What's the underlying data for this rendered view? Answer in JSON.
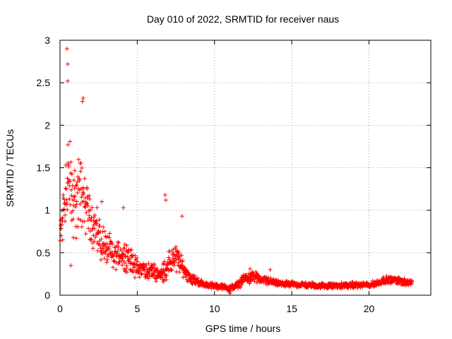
{
  "chart_data": {
    "type": "scatter",
    "title": "Day 010 of 2022, SRMTID for receiver naus",
    "xlabel": "GPS time / hours",
    "ylabel": "SRMTID / TECUs",
    "xlim": [
      0,
      24
    ],
    "ylim": [
      0,
      3
    ],
    "x_ticks": [
      0,
      5,
      10,
      15,
      20
    ],
    "y_ticks": [
      0,
      0.5,
      1,
      1.5,
      2,
      2.5,
      3
    ],
    "x_tick_labels": [
      "0",
      "5",
      "10",
      "15",
      "20"
    ],
    "y_tick_labels": [
      "0",
      "0.5",
      "1",
      "1.5",
      "2",
      "2.5",
      "3"
    ],
    "grid": true,
    "marker": "+",
    "series": [
      {
        "name": "SRMTID",
        "color": "#ff0000",
        "envelope_x": [
          0,
          0.3,
          0.5,
          0.8,
          1.0,
          1.3,
          1.6,
          2.0,
          2.5,
          3.0,
          3.5,
          4.0,
          4.5,
          5.0,
          5.5,
          6.0,
          6.5,
          7.0,
          7.5,
          8.0,
          8.5,
          9.0,
          9.5,
          10.0,
          10.5,
          11.0,
          11.5,
          12.0,
          12.5,
          13.0,
          13.5,
          14.0,
          14.5,
          15.0,
          16.0,
          17.0,
          18.0,
          19.0,
          20.0,
          20.5,
          21.0,
          21.5,
          22.0,
          22.5,
          22.8
        ],
        "envelope_center": [
          0.65,
          1.2,
          1.35,
          1.1,
          1.15,
          1.25,
          1.1,
          0.9,
          0.7,
          0.55,
          0.45,
          0.5,
          0.42,
          0.32,
          0.3,
          0.28,
          0.24,
          0.35,
          0.45,
          0.3,
          0.2,
          0.15,
          0.12,
          0.11,
          0.1,
          0.08,
          0.12,
          0.2,
          0.22,
          0.18,
          0.17,
          0.14,
          0.13,
          0.13,
          0.12,
          0.11,
          0.11,
          0.12,
          0.12,
          0.14,
          0.18,
          0.18,
          0.17,
          0.15,
          0.14
        ],
        "envelope_spread": [
          0.3,
          0.6,
          0.9,
          0.55,
          0.6,
          0.55,
          0.45,
          0.35,
          0.3,
          0.25,
          0.2,
          0.22,
          0.18,
          0.14,
          0.12,
          0.12,
          0.1,
          0.2,
          0.2,
          0.12,
          0.08,
          0.05,
          0.04,
          0.04,
          0.04,
          0.04,
          0.05,
          0.08,
          0.08,
          0.06,
          0.06,
          0.04,
          0.04,
          0.04,
          0.04,
          0.04,
          0.04,
          0.04,
          0.04,
          0.05,
          0.05,
          0.05,
          0.05,
          0.05,
          0.04
        ],
        "notable_points": [
          {
            "x": 0.45,
            "y": 2.9
          },
          {
            "x": 0.5,
            "y": 2.72
          },
          {
            "x": 0.5,
            "y": 2.52
          },
          {
            "x": 1.5,
            "y": 2.32
          },
          {
            "x": 1.45,
            "y": 2.28
          },
          {
            "x": 6.8,
            "y": 1.18
          },
          {
            "x": 6.85,
            "y": 1.12
          },
          {
            "x": 7.9,
            "y": 0.93
          },
          {
            "x": 4.1,
            "y": 1.03
          },
          {
            "x": 2.7,
            "y": 1.1
          },
          {
            "x": 0.7,
            "y": 0.35
          },
          {
            "x": 11.0,
            "y": 0.02
          },
          {
            "x": 13.6,
            "y": 0.3
          },
          {
            "x": 12.3,
            "y": 0.31
          }
        ]
      }
    ]
  }
}
